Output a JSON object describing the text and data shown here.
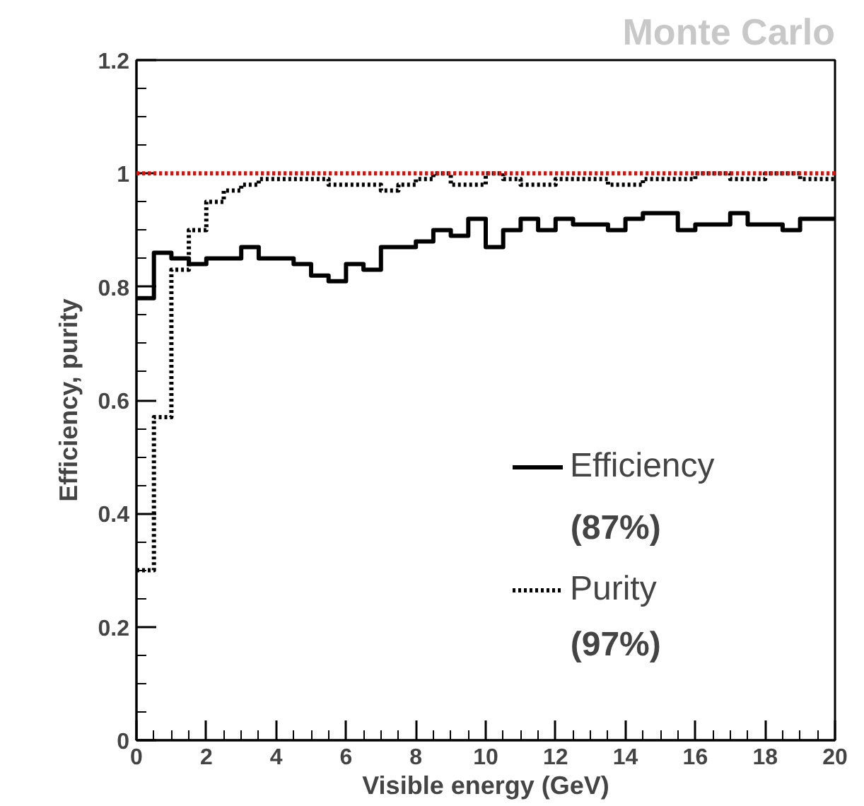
{
  "chart_data": {
    "type": "histogram",
    "title": "Monte Carlo",
    "xlabel": "Visible energy (GeV)",
    "ylabel": "Efficiency, purity",
    "bins": [
      0,
      0.5,
      1,
      1.5,
      2,
      2.5,
      3,
      3.5,
      4,
      4.5,
      5,
      5.5,
      6,
      6.5,
      7,
      7.5,
      8,
      8.5,
      9,
      9.5,
      10,
      10.5,
      11,
      11.5,
      12,
      12.5,
      13,
      13.5,
      14,
      14.5,
      15,
      15.5,
      16,
      16.5,
      17,
      17.5,
      18,
      18.5,
      19,
      19.5,
      20
    ],
    "series": [
      {
        "name": "Efficiency",
        "color": "#000000",
        "line_style": "solid",
        "values": [
          0.78,
          0.86,
          0.85,
          0.84,
          0.85,
          0.85,
          0.87,
          0.85,
          0.85,
          0.84,
          0.82,
          0.81,
          0.84,
          0.83,
          0.87,
          0.87,
          0.88,
          0.9,
          0.89,
          0.92,
          0.87,
          0.9,
          0.92,
          0.9,
          0.92,
          0.91,
          0.91,
          0.9,
          0.92,
          0.93,
          0.93,
          0.9,
          0.91,
          0.91,
          0.93,
          0.91,
          0.91,
          0.9,
          0.92,
          0.92
        ]
      },
      {
        "name": "Purity",
        "color": "#000000",
        "line_style": "dotted",
        "values": [
          0.3,
          0.57,
          0.83,
          0.9,
          0.95,
          0.97,
          0.98,
          0.99,
          0.99,
          0.99,
          0.99,
          0.98,
          0.98,
          0.98,
          0.97,
          0.98,
          0.99,
          1.0,
          0.98,
          0.98,
          1.0,
          0.99,
          0.98,
          0.98,
          0.99,
          0.99,
          0.99,
          0.98,
          0.98,
          0.99,
          0.99,
          0.99,
          1.0,
          1.0,
          0.99,
          0.99,
          1.0,
          1.0,
          0.99,
          0.99
        ]
      }
    ],
    "ref_lines": [
      {
        "axis": "y",
        "value": 1,
        "color": "#ff0000",
        "line_style": "dotted"
      }
    ],
    "annotations": [
      "(87%)",
      "(97%)"
    ],
    "xlim": [
      0,
      20
    ],
    "xticks": [
      0,
      2,
      4,
      6,
      8,
      10,
      12,
      14,
      16,
      18,
      20
    ],
    "ylim": [
      0,
      1.2
    ],
    "yticks": [
      0,
      0.2,
      0.4,
      0.6,
      0.8,
      1,
      1.2
    ],
    "legend": "bottom right",
    "grid": false
  }
}
